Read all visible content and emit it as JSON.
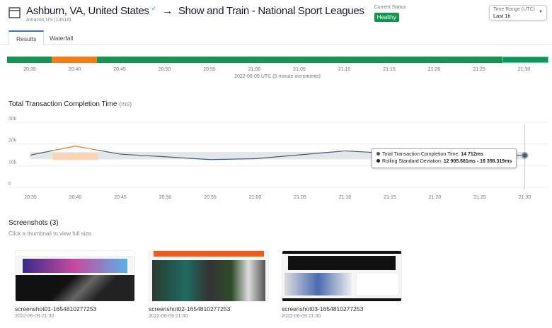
{
  "header": {
    "location": "Ashburn, VA, United States",
    "provider": "Amazon,US (14618)",
    "test_name": "Show and Train - National Sport Leagues",
    "status_label": "Current Status",
    "status": "Healthy",
    "time_range_label": "Time Range (UTC)",
    "time_range_value": "Last 1h",
    "icon": "browser-window-icon"
  },
  "tabs": [
    {
      "label": "Results",
      "active": true
    },
    {
      "label": "Waterfall",
      "active": false
    }
  ],
  "status_bar": {
    "segments": [
      {
        "status": "healthy",
        "color": "#14944f"
      },
      {
        "status": "warning",
        "color": "#f07d16"
      },
      {
        "status": "healthy",
        "color": "#14944f"
      },
      {
        "status": "healthy",
        "color": "#14944f",
        "selected": true
      }
    ],
    "ticks": [
      "20:35",
      "20:40",
      "20:45",
      "20:50",
      "20:55",
      "21:00",
      "21:05",
      "21:10",
      "21:15",
      "21:20",
      "21:25",
      "21:30"
    ],
    "caption": "2022-06-09 UTC (5 minute increments)"
  },
  "chart_title": "Total Transaction Completion Time",
  "chart_unit": "(ms)",
  "chart_data": {
    "type": "line",
    "x": [
      "20:35",
      "20:40",
      "20:45",
      "20:50",
      "20:55",
      "21:00",
      "21:05",
      "21:10",
      "21:15",
      "21:20",
      "21:25",
      "21:30"
    ],
    "y_ticks": [
      "30k",
      "20k",
      "10k",
      "0"
    ],
    "ylim": [
      0,
      30000
    ],
    "grid": true,
    "series": [
      {
        "values": [
          14900,
          19000,
          15300,
          14100,
          12800,
          13200,
          15000,
          16800,
          15700,
          15300,
          15000,
          14712
        ],
        "color": "#4a5a6a",
        "anomaly_color": "#f07d16",
        "anomalies": [
          "20:40"
        ]
      }
    ],
    "band": {
      "low": [
        13000,
        12800,
        12900,
        12900,
        12900,
        12900,
        12900,
        12900,
        12900,
        12900,
        12900,
        12906
      ],
      "high": [
        16300,
        16300,
        16300,
        16300,
        16300,
        16300,
        16300,
        16300,
        16300,
        16300,
        16300,
        16358
      ]
    },
    "tooltip": {
      "line1_label": "Total Transaction Completion Time:",
      "line1_value": "14 712ms",
      "line2_label": "Rolling Standard Deviation:",
      "line2_value": "12 905.681ms - 16 358.319ms"
    }
  },
  "screenshots": {
    "title": "Screenshots (3)",
    "hint": "Click a thumbnail to view full size.",
    "items": [
      {
        "name": "screenshot01-1654810277253",
        "date": "2022-06-09 21:30"
      },
      {
        "name": "screenshot02-1654810277253",
        "date": "2022-06-09 21:30"
      },
      {
        "name": "screenshot03-1654810277253",
        "date": "2022-06-09 21:30"
      }
    ]
  }
}
